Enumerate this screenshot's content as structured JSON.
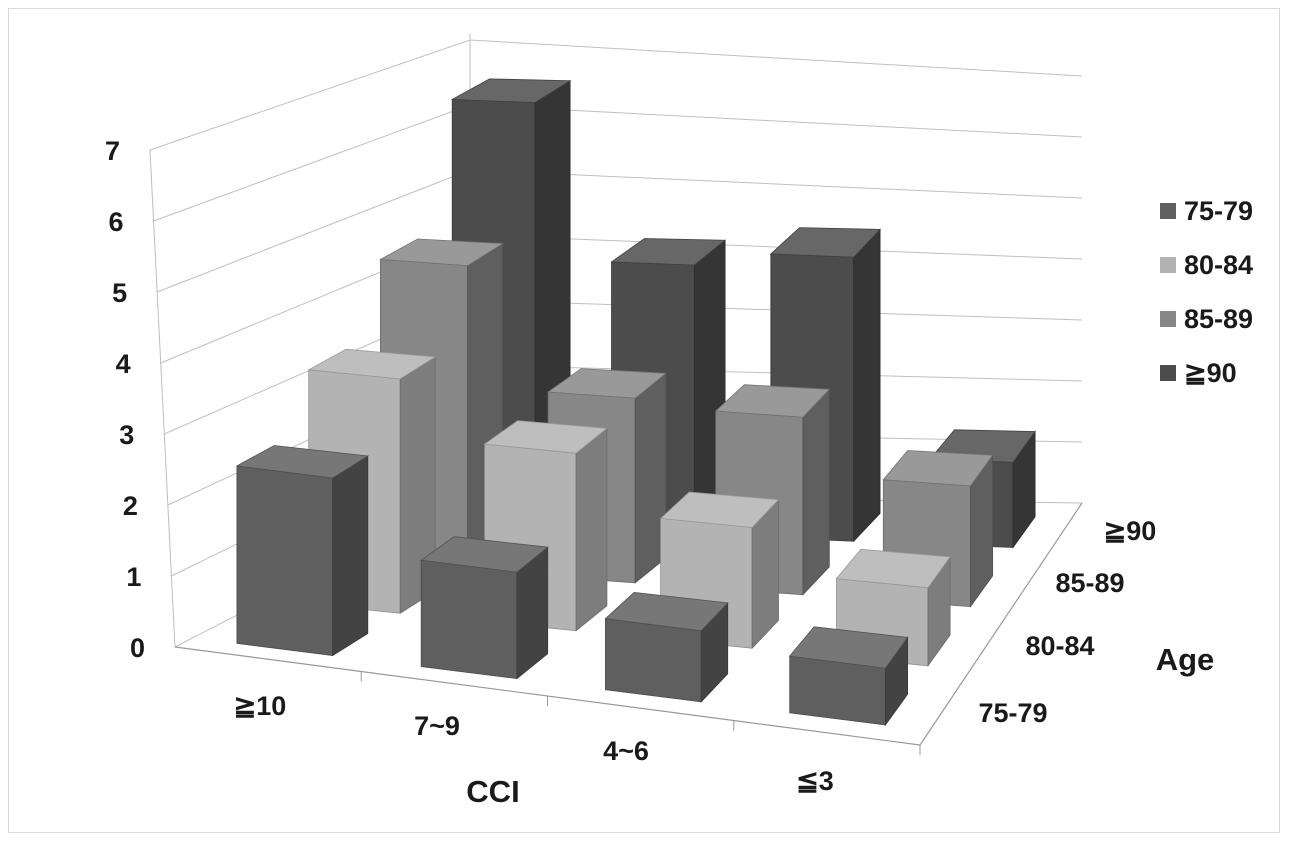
{
  "chart_data": {
    "type": "bar3d",
    "title": "",
    "xlabel": "CCI",
    "zlabel": "Age",
    "ylabel": "",
    "ylim": [
      0,
      7
    ],
    "yticks": [
      "0",
      "1",
      "2",
      "3",
      "4",
      "5",
      "6",
      "7"
    ],
    "categories": [
      "≧10",
      "7~9",
      "4~6",
      "≦3"
    ],
    "series": [
      {
        "name": "75-79",
        "color": "#5f5f5f",
        "values": [
          2.5,
          1.5,
          1.0,
          0.8
        ]
      },
      {
        "name": "80-84",
        "color": "#b3b3b3",
        "values": [
          3.3,
          2.5,
          1.7,
          1.1
        ]
      },
      {
        "name": "85-89",
        "color": "#878787",
        "values": [
          4.3,
          2.6,
          2.5,
          1.7
        ]
      },
      {
        "name": "≧90",
        "color": "#4c4c4c",
        "values": [
          6.0,
          3.8,
          4.0,
          1.2
        ]
      }
    ],
    "depth_labels": [
      "75-79",
      "80-84",
      "85-89",
      "≧90"
    ],
    "legend_position": "right",
    "grid": true
  }
}
